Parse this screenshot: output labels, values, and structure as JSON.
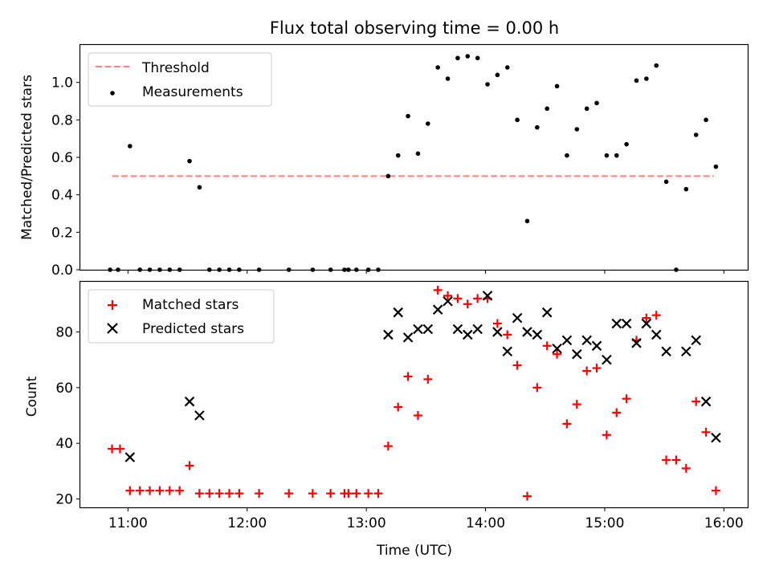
{
  "chart_data": [
    {
      "type": "scatter",
      "title": "Flux total observing time = 0.00 h",
      "xlabel": "",
      "ylabel": "Matched/Predicted stars",
      "xlim": [
        "10:36",
        "16:12"
      ],
      "ylim": [
        0.0,
        1.2
      ],
      "yticks": [
        0.0,
        0.2,
        0.4,
        0.6,
        0.8,
        1.0
      ],
      "yticklabels": [
        "0.0",
        "0.2",
        "0.4",
        "0.6",
        "0.8",
        "1.0"
      ],
      "xticks": [
        "11:00",
        "12:00",
        "13:00",
        "14:00",
        "15:00",
        "16:00"
      ],
      "show_xticklabels": false,
      "grid": false,
      "legend_position": "upper-left",
      "threshold": {
        "name": "Threshold",
        "y": 0.5,
        "x_from": "10:52",
        "x_to": "15:55",
        "color": "#ff7f7f",
        "style": "dashed"
      },
      "series": [
        {
          "name": "Measurements",
          "marker": "dot",
          "color": "#000000",
          "points": [
            [
              "10:51",
              0.0
            ],
            [
              "10:55",
              0.0
            ],
            [
              "11:01",
              0.66
            ],
            [
              "11:06",
              0.0
            ],
            [
              "11:11",
              0.0
            ],
            [
              "11:16",
              0.0
            ],
            [
              "11:21",
              0.0
            ],
            [
              "11:26",
              0.0
            ],
            [
              "11:31",
              0.58
            ],
            [
              "11:36",
              0.44
            ],
            [
              "11:41",
              0.0
            ],
            [
              "11:46",
              0.0
            ],
            [
              "11:51",
              0.0
            ],
            [
              "11:56",
              0.0
            ],
            [
              "12:06",
              0.0
            ],
            [
              "12:21",
              0.0
            ],
            [
              "12:33",
              0.0
            ],
            [
              "12:42",
              0.0
            ],
            [
              "12:49",
              0.0
            ],
            [
              "12:51",
              0.0
            ],
            [
              "12:55",
              0.0
            ],
            [
              "13:01",
              0.0
            ],
            [
              "13:06",
              0.0
            ],
            [
              "13:11",
              0.5
            ],
            [
              "13:16",
              0.61
            ],
            [
              "13:21",
              0.82
            ],
            [
              "13:26",
              0.62
            ],
            [
              "13:31",
              0.78
            ],
            [
              "13:36",
              1.08
            ],
            [
              "13:41",
              1.02
            ],
            [
              "13:46",
              1.13
            ],
            [
              "13:51",
              1.14
            ],
            [
              "13:56",
              1.13
            ],
            [
              "14:01",
              0.99
            ],
            [
              "14:06",
              1.04
            ],
            [
              "14:11",
              1.08
            ],
            [
              "14:16",
              0.8
            ],
            [
              "14:21",
              0.26
            ],
            [
              "14:26",
              0.76
            ],
            [
              "14:31",
              0.86
            ],
            [
              "14:36",
              0.98
            ],
            [
              "14:41",
              0.61
            ],
            [
              "14:46",
              0.75
            ],
            [
              "14:51",
              0.86
            ],
            [
              "14:56",
              0.89
            ],
            [
              "15:01",
              0.61
            ],
            [
              "15:06",
              0.61
            ],
            [
              "15:11",
              0.67
            ],
            [
              "15:16",
              1.01
            ],
            [
              "15:21",
              1.02
            ],
            [
              "15:26",
              1.09
            ],
            [
              "15:31",
              0.47
            ],
            [
              "15:36",
              0.0
            ],
            [
              "15:41",
              0.43
            ],
            [
              "15:46",
              0.72
            ],
            [
              "15:51",
              0.8
            ],
            [
              "15:56",
              0.55
            ]
          ]
        }
      ]
    },
    {
      "type": "scatter",
      "title": "",
      "xlabel": "Time (UTC)",
      "ylabel": "Count",
      "xlim": [
        "10:36",
        "16:12"
      ],
      "ylim": [
        17,
        98
      ],
      "yticks": [
        20,
        40,
        60,
        80
      ],
      "yticklabels": [
        "20",
        "40",
        "60",
        "80"
      ],
      "xticks": [
        "11:00",
        "12:00",
        "13:00",
        "14:00",
        "15:00",
        "16:00"
      ],
      "xticklabels": [
        "11:00",
        "12:00",
        "13:00",
        "14:00",
        "15:00",
        "16:00"
      ],
      "grid": false,
      "legend_position": "upper-left",
      "series": [
        {
          "name": "Matched stars",
          "marker": "plus",
          "color": "#ff0000",
          "points": [
            [
              "10:52",
              38
            ],
            [
              "10:56",
              38
            ],
            [
              "11:01",
              23
            ],
            [
              "11:06",
              23
            ],
            [
              "11:11",
              23
            ],
            [
              "11:16",
              23
            ],
            [
              "11:21",
              23
            ],
            [
              "11:26",
              23
            ],
            [
              "11:31",
              32
            ],
            [
              "11:36",
              22
            ],
            [
              "11:41",
              22
            ],
            [
              "11:46",
              22
            ],
            [
              "11:51",
              22
            ],
            [
              "11:56",
              22
            ],
            [
              "12:06",
              22
            ],
            [
              "12:21",
              22
            ],
            [
              "12:33",
              22
            ],
            [
              "12:42",
              22
            ],
            [
              "12:49",
              22
            ],
            [
              "12:51",
              22
            ],
            [
              "12:55",
              22
            ],
            [
              "13:01",
              22
            ],
            [
              "13:06",
              22
            ],
            [
              "13:11",
              39
            ],
            [
              "13:16",
              53
            ],
            [
              "13:21",
              64
            ],
            [
              "13:26",
              50
            ],
            [
              "13:31",
              63
            ],
            [
              "13:36",
              95
            ],
            [
              "13:41",
              93
            ],
            [
              "13:46",
              92
            ],
            [
              "13:51",
              90
            ],
            [
              "13:56",
              92
            ],
            [
              "14:01",
              92
            ],
            [
              "14:06",
              83
            ],
            [
              "14:11",
              79
            ],
            [
              "14:16",
              68
            ],
            [
              "14:21",
              21
            ],
            [
              "14:26",
              60
            ],
            [
              "14:31",
              75
            ],
            [
              "14:36",
              72
            ],
            [
              "14:41",
              47
            ],
            [
              "14:46",
              54
            ],
            [
              "14:51",
              66
            ],
            [
              "14:56",
              67
            ],
            [
              "15:01",
              43
            ],
            [
              "15:06",
              51
            ],
            [
              "15:11",
              56
            ],
            [
              "15:16",
              77
            ],
            [
              "15:21",
              85
            ],
            [
              "15:26",
              86
            ],
            [
              "15:31",
              34
            ],
            [
              "15:36",
              34
            ],
            [
              "15:41",
              31
            ],
            [
              "15:46",
              55
            ],
            [
              "15:51",
              44
            ],
            [
              "15:56",
              23
            ]
          ]
        },
        {
          "name": "Predicted stars",
          "marker": "x",
          "color": "#000000",
          "points": [
            [
              "11:01",
              35
            ],
            [
              "11:31",
              55
            ],
            [
              "11:36",
              50
            ],
            [
              "13:11",
              79
            ],
            [
              "13:16",
              87
            ],
            [
              "13:21",
              78
            ],
            [
              "13:26",
              81
            ],
            [
              "13:31",
              81
            ],
            [
              "13:36",
              88
            ],
            [
              "13:41",
              91
            ],
            [
              "13:46",
              81
            ],
            [
              "13:51",
              79
            ],
            [
              "13:56",
              81
            ],
            [
              "14:01",
              93
            ],
            [
              "14:06",
              80
            ],
            [
              "14:11",
              73
            ],
            [
              "14:16",
              85
            ],
            [
              "14:21",
              80
            ],
            [
              "14:26",
              79
            ],
            [
              "14:31",
              87
            ],
            [
              "14:36",
              74
            ],
            [
              "14:41",
              77
            ],
            [
              "14:46",
              72
            ],
            [
              "14:51",
              77
            ],
            [
              "14:56",
              75
            ],
            [
              "15:01",
              70
            ],
            [
              "15:06",
              83
            ],
            [
              "15:11",
              83
            ],
            [
              "15:16",
              76
            ],
            [
              "15:21",
              83
            ],
            [
              "15:26",
              79
            ],
            [
              "15:31",
              73
            ],
            [
              "15:41",
              73
            ],
            [
              "15:46",
              77
            ],
            [
              "15:51",
              55
            ],
            [
              "15:56",
              42
            ]
          ]
        }
      ]
    }
  ]
}
